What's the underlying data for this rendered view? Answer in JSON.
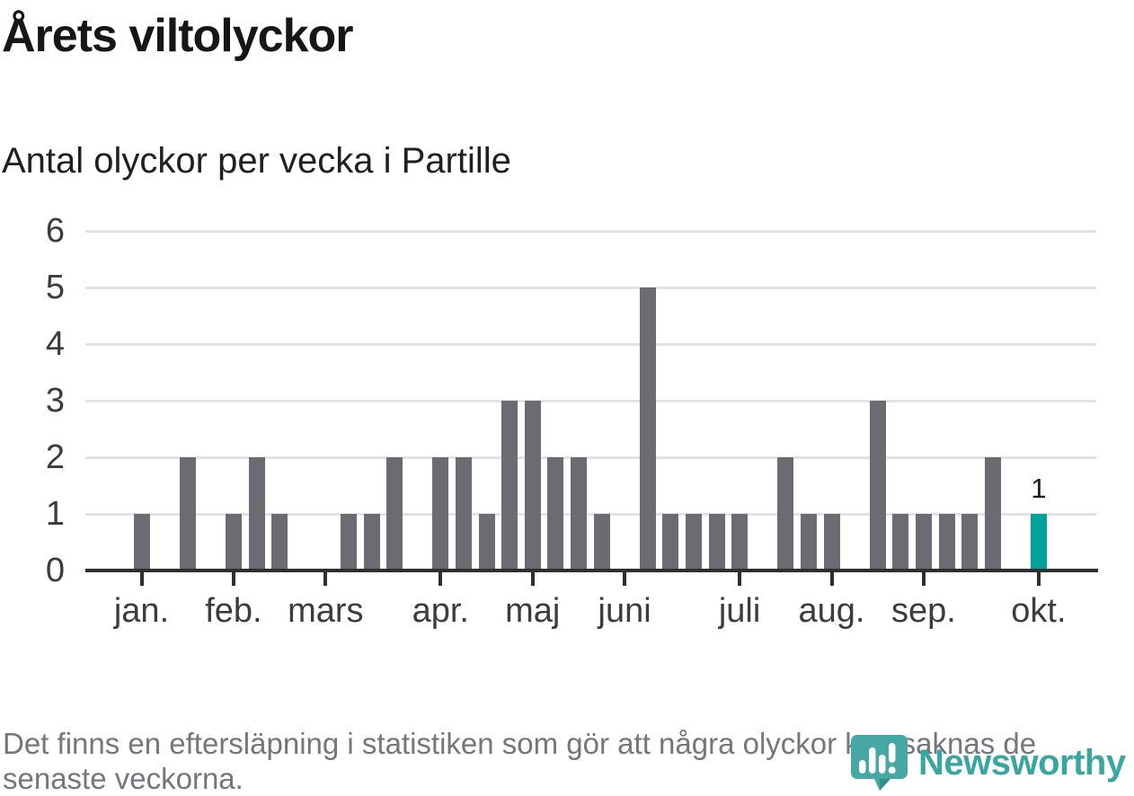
{
  "title": "Årets viltolyckor",
  "subtitle": "Antal olyckor per vecka i Partille",
  "footer": {
    "text": "Det finns en eftersläpning i statistiken som gör att några olyckor kan saknas de senaste veckorna."
  },
  "logo": {
    "name": "Newsworthy",
    "icon": "newsworthy-speech-bubble-barchart-icon"
  },
  "colors": {
    "bar": "#6d6b72",
    "highlight": "#00a29a",
    "axis": "#2f2f2f",
    "gridline": "#e3e3e3",
    "text_dark": "#161616",
    "tick_label": "#3c3c3c",
    "footer_text": "#75757c",
    "logo_teal": "#3aa6a2"
  },
  "chart_data": {
    "type": "bar",
    "title": "Årets viltolyckor",
    "subtitle": "Antal olyckor per vecka i Partille",
    "x_unit": "week",
    "x_range": [
      1,
      40
    ],
    "values": [
      1,
      0,
      2,
      0,
      1,
      2,
      1,
      0,
      0,
      1,
      1,
      2,
      0,
      2,
      2,
      1,
      3,
      3,
      2,
      2,
      1,
      0,
      5,
      1,
      1,
      1,
      1,
      0,
      2,
      1,
      1,
      0,
      3,
      1,
      1,
      1,
      1,
      2,
      0,
      1
    ],
    "highlight": {
      "index": 39,
      "label": "1"
    },
    "y_ticks": [
      0,
      1,
      2,
      3,
      4,
      5,
      6
    ],
    "ylim": [
      0,
      6
    ],
    "grid": "horizontal",
    "legend": "none",
    "month_ticks": [
      {
        "label": "jan.",
        "week": 1
      },
      {
        "label": "feb.",
        "week": 5
      },
      {
        "label": "mars",
        "week": 9
      },
      {
        "label": "apr.",
        "week": 14
      },
      {
        "label": "maj",
        "week": 18
      },
      {
        "label": "juni",
        "week": 22
      },
      {
        "label": "juli",
        "week": 27
      },
      {
        "label": "aug.",
        "week": 31
      },
      {
        "label": "sep.",
        "week": 35
      },
      {
        "label": "okt.",
        "week": 40
      }
    ]
  }
}
